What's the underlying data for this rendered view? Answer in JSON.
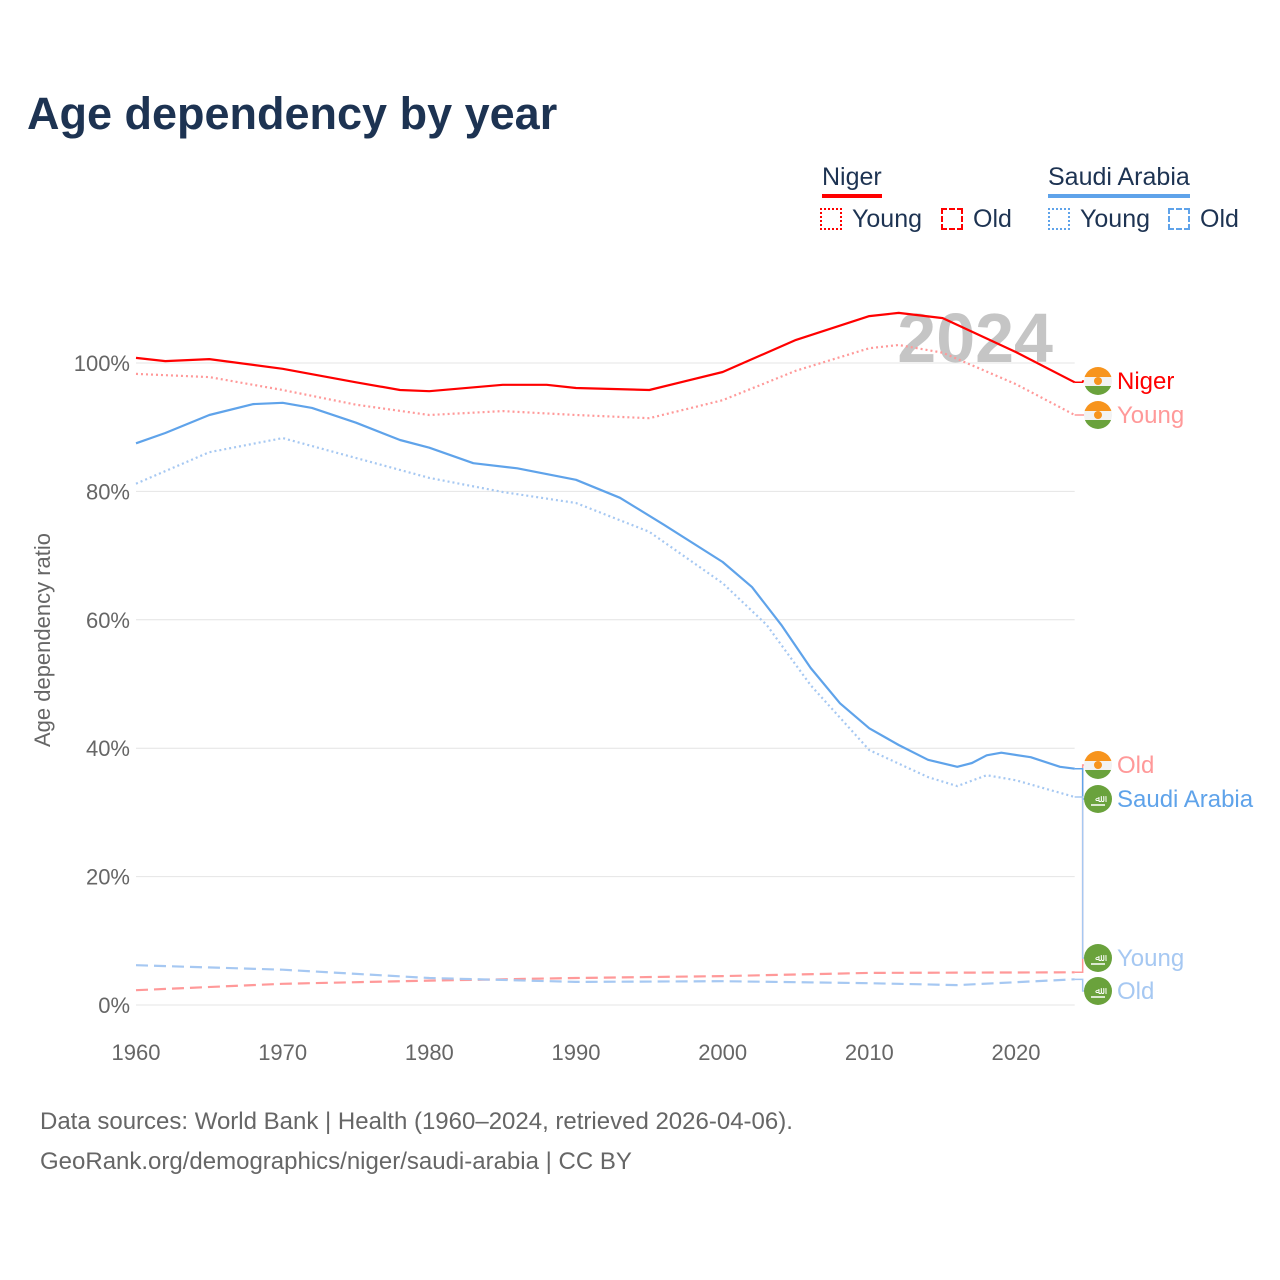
{
  "chart_data": {
    "type": "line",
    "title": "Age dependency by year",
    "xlabel": "",
    "ylabel": "Age dependency ratio",
    "xlim": [
      1960,
      2024
    ],
    "ylim": [
      0,
      110
    ],
    "yticks": [
      0,
      20,
      40,
      60,
      80,
      100
    ],
    "ytick_labels": [
      "0%",
      "20%",
      "40%",
      "60%",
      "80%",
      "100%"
    ],
    "xticks": [
      1960,
      1970,
      1980,
      1990,
      2000,
      2010,
      2020
    ],
    "xtick_labels": [
      "1960",
      "1970",
      "1980",
      "1990",
      "2000",
      "2010",
      "2020"
    ],
    "year_watermark": "2024",
    "grid": true,
    "legend_placement": "top-right",
    "legend": {
      "groups": [
        {
          "name": "Niger",
          "color": "#ff0000",
          "items": [
            {
              "label": "Young",
              "style": "dotted"
            },
            {
              "label": "Old",
              "style": "dashed"
            }
          ]
        },
        {
          "name": "Saudi Arabia",
          "color": "#5fa3ea",
          "items": [
            {
              "label": "Young",
              "style": "dotted"
            },
            {
              "label": "Old",
              "style": "dashed"
            }
          ]
        }
      ]
    },
    "series": [
      {
        "name": "Niger",
        "end_label": "Niger",
        "country": "niger",
        "color": "#ff0000",
        "style": "solid",
        "x": [
          1960,
          1962,
          1965,
          1970,
          1975,
          1978,
          1980,
          1985,
          1988,
          1990,
          1995,
          2000,
          2005,
          2010,
          2012,
          2015,
          2020,
          2024
        ],
        "y": [
          100.8,
          100.3,
          100.6,
          99.1,
          97.0,
          95.8,
          95.6,
          96.6,
          96.6,
          96.1,
          95.8,
          98.6,
          103.6,
          107.3,
          107.8,
          107.0,
          101.7,
          97.0
        ]
      },
      {
        "name": "Niger Young",
        "end_label": "Young",
        "country": "niger",
        "color": "#ff9999",
        "style": "dotted",
        "x": [
          1960,
          1965,
          1970,
          1975,
          1980,
          1985,
          1990,
          1995,
          2000,
          2005,
          2010,
          2012,
          2015,
          2020,
          2024
        ],
        "y": [
          98.3,
          97.8,
          95.8,
          93.5,
          91.9,
          92.5,
          91.9,
          91.4,
          94.2,
          98.8,
          102.3,
          102.8,
          101.6,
          96.7,
          91.9
        ]
      },
      {
        "name": "Niger Old",
        "end_label": "Old",
        "country": "niger",
        "color": "#ff9999",
        "style": "dashed",
        "x": [
          1960,
          1970,
          1980,
          1990,
          2000,
          2010,
          2024
        ],
        "y": [
          2.3,
          3.3,
          3.8,
          4.2,
          4.5,
          5.0,
          5.1
        ]
      },
      {
        "name": "Saudi Arabia",
        "end_label": "Saudi Arabia",
        "country": "saudi",
        "color": "#5fa3ea",
        "style": "solid",
        "x": [
          1960,
          1962,
          1965,
          1968,
          1970,
          1972,
          1975,
          1978,
          1980,
          1983,
          1986,
          1990,
          1993,
          1996,
          2000,
          2002,
          2004,
          2006,
          2008,
          2010,
          2012,
          2014,
          2016,
          2017,
          2018,
          2019,
          2021,
          2023,
          2024
        ],
        "y": [
          87.5,
          89.1,
          91.9,
          93.6,
          93.8,
          93.0,
          90.7,
          88.0,
          86.8,
          84.4,
          83.6,
          81.8,
          79.0,
          74.8,
          69.0,
          65.1,
          59.2,
          52.5,
          47.0,
          43.1,
          40.5,
          38.2,
          37.1,
          37.7,
          38.9,
          39.3,
          38.6,
          37.1,
          36.8
        ]
      },
      {
        "name": "Saudi Arabia Young",
        "end_label": "Young",
        "country": "saudi",
        "color": "#a6c8f2",
        "style": "dotted",
        "x": [
          1960,
          1965,
          1970,
          1975,
          1980,
          1985,
          1990,
          1995,
          2000,
          2003,
          2006,
          2010,
          2014,
          2016,
          2018,
          2020,
          2024
        ],
        "y": [
          81.2,
          86.1,
          88.3,
          85.2,
          82.1,
          79.9,
          78.2,
          73.7,
          65.7,
          59.2,
          49.8,
          39.7,
          35.5,
          34.1,
          35.8,
          35.0,
          32.4
        ]
      },
      {
        "name": "Saudi Arabia Old",
        "end_label": "Old",
        "country": "saudi",
        "color": "#a6c8f2",
        "style": "dashed",
        "x": [
          1960,
          1970,
          1980,
          1990,
          2000,
          2010,
          2016,
          2024
        ],
        "y": [
          6.2,
          5.5,
          4.2,
          3.6,
          3.7,
          3.4,
          3.1,
          4.0
        ]
      }
    ]
  },
  "footer": {
    "line1": "Data sources: World Bank | Health (1960–2024, retrieved 2026-04-06).",
    "line2": "GeoRank.org/demographics/niger/saudi-arabia | CC BY"
  }
}
